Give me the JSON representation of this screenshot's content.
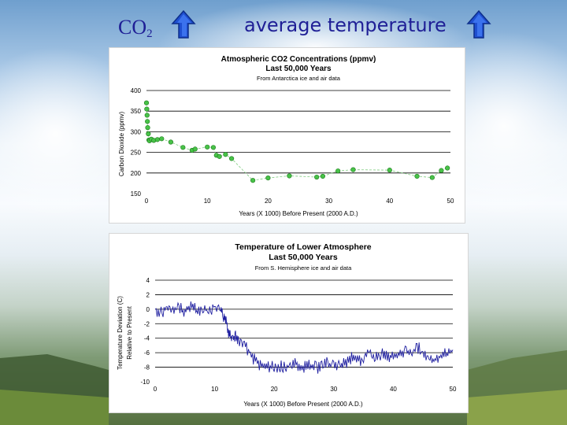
{
  "header": {
    "co2_label": "CO",
    "co2_subscript": "2",
    "temp_label": "average temperature"
  },
  "icons": {
    "up_arrow": "up-arrow-icon"
  },
  "colors": {
    "heading": "#1f1f96",
    "arrow": "#1f4fd0",
    "co2_series": "#3cb43c",
    "temp_series": "#1f1fa0"
  },
  "chart_data": [
    {
      "type": "scatter",
      "title": "Atmospheric CO2 Concentrations (ppmv)",
      "title2": "Last 50,000 Years",
      "subtitle": "From Antarctica ice and air data",
      "xlabel": "Years (X 1000) Before Present (2000 A.D.)",
      "ylabel": "Carbon Dioxide (ppmv)",
      "xlim": [
        0,
        50
      ],
      "ylim": [
        150,
        400
      ],
      "xticks": [
        0,
        10,
        20,
        30,
        40,
        50
      ],
      "yticks": [
        150,
        200,
        250,
        300,
        350,
        400
      ],
      "grid": true,
      "x": [
        0,
        0.05,
        0.1,
        0.15,
        0.2,
        0.3,
        0.4,
        0.5,
        0.8,
        1.2,
        1.8,
        2.5,
        4,
        6,
        7.5,
        8,
        10,
        11,
        11.5,
        12,
        13,
        14,
        17.5,
        20,
        23.5,
        28,
        29,
        31.5,
        34,
        40,
        44.5,
        47,
        48.5,
        49.5
      ],
      "y": [
        370,
        355,
        340,
        325,
        310,
        295,
        280,
        278,
        282,
        279,
        281,
        283,
        275,
        262,
        255,
        258,
        263,
        262,
        243,
        240,
        245,
        235,
        182,
        188,
        193,
        190,
        192,
        205,
        208,
        207,
        192,
        189,
        206,
        212
      ]
    },
    {
      "type": "line",
      "title": "Temperature of Lower Atmosphere",
      "title2": "Last 50,000 Years",
      "subtitle": "From S. Hemisphere ice and air data",
      "xlabel": "Years (X 1000) Before Present (2000 A.D.)",
      "ylabel": "Temperature Deviation (C)",
      "ylabel2": "Relative to Present",
      "xlim": [
        0,
        50
      ],
      "ylim": [
        -10,
        4
      ],
      "xticks": [
        0,
        10,
        20,
        30,
        40,
        50
      ],
      "yticks": [
        -10,
        -8,
        -6,
        -4,
        -2,
        0,
        2,
        4
      ],
      "grid": true,
      "x": [
        0,
        1,
        2,
        3,
        4,
        5,
        6,
        7,
        8,
        9,
        10,
        11,
        11.5,
        12,
        12.5,
        13,
        13.5,
        14,
        15,
        16,
        17,
        18,
        19,
        20,
        21,
        22,
        23,
        24,
        25,
        26,
        27,
        28,
        29,
        30,
        31,
        32,
        33,
        34,
        35,
        36,
        37,
        38,
        39,
        40,
        41,
        42,
        43,
        44,
        45,
        46,
        47,
        48,
        49,
        50
      ],
      "y": [
        0,
        -0.5,
        0.3,
        -0.2,
        0.2,
        -0.4,
        0.5,
        -0.3,
        0.1,
        -0.2,
        0.4,
        -0.1,
        -1,
        -2,
        -3.6,
        -4,
        -3.8,
        -4.3,
        -5,
        -6.2,
        -7.3,
        -8,
        -7.8,
        -8.1,
        -7.9,
        -8,
        -7.7,
        -7.6,
        -8,
        -7.8,
        -8.1,
        -7.8,
        -7.4,
        -7.6,
        -7.7,
        -7.4,
        -6.8,
        -7.2,
        -6.9,
        -5.7,
        -6.7,
        -6.1,
        -6.6,
        -6.2,
        -6.1,
        -5.8,
        -6.4,
        -5.2,
        -6.0,
        -7.0,
        -7.1,
        -6.4,
        -5.9,
        -5.6
      ]
    }
  ]
}
